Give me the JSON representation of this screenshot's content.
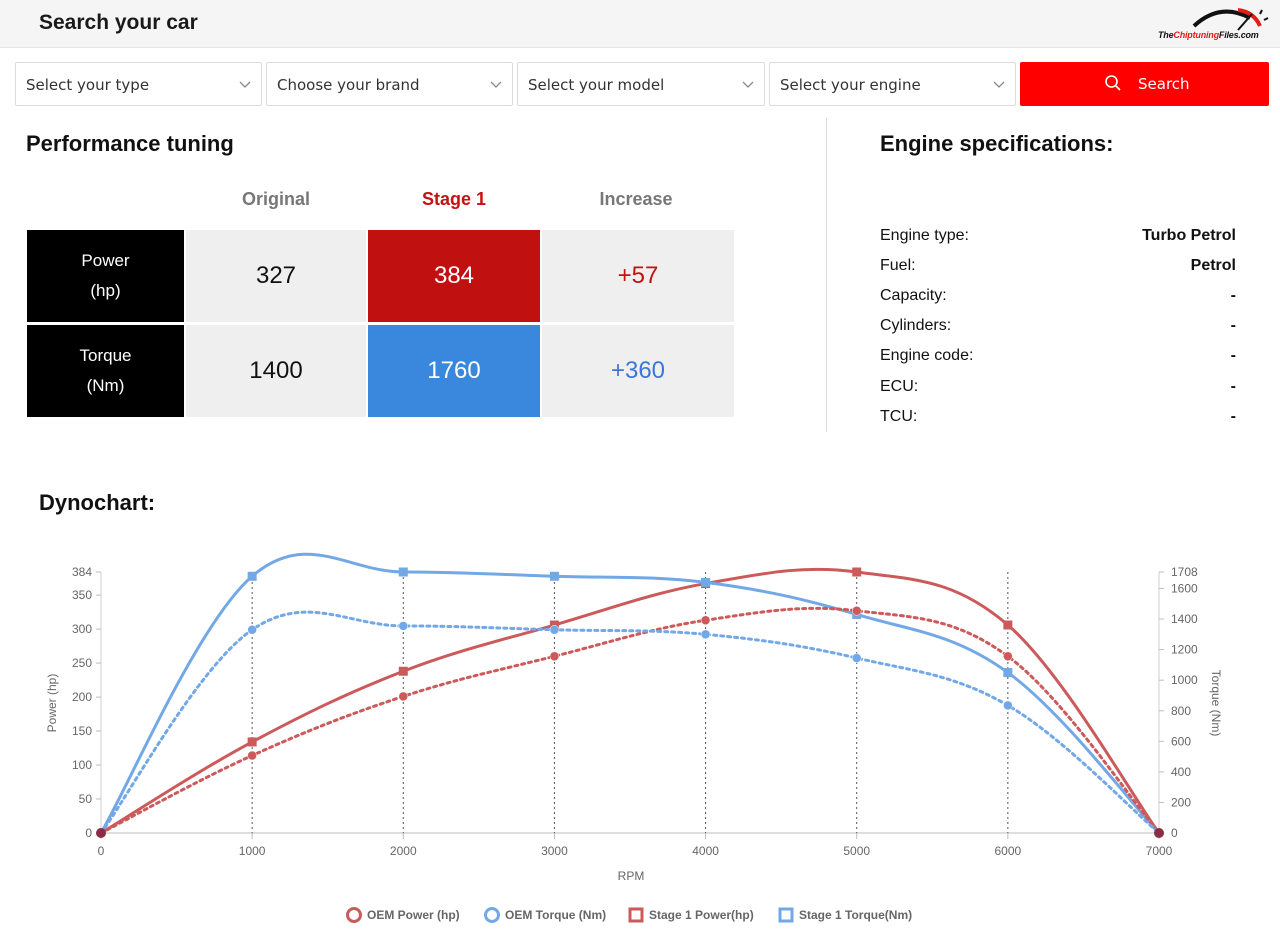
{
  "header": {
    "title": "Search your car",
    "logo_prefix": "The",
    "logo_red": "Chiptuning",
    "logo_suffix": "Files.com"
  },
  "search": {
    "type_label": "Select your type",
    "brand_label": "Choose your brand",
    "model_label": "Select your model",
    "engine_label": "Select your engine",
    "button_label": "Search"
  },
  "performance": {
    "title": "Performance tuning",
    "col_original": "Original",
    "col_stage": "Stage 1",
    "col_increase": "Increase",
    "power": {
      "label": "Power\n(hp)",
      "original": "327",
      "stage": "384",
      "increase": "+57"
    },
    "torque": {
      "label": "Torque\n(Nm)",
      "original": "1400",
      "stage": "1760",
      "increase": "+360"
    }
  },
  "specs": {
    "title": "Engine specifications:",
    "items": [
      {
        "label": "Engine type:",
        "value": "Turbo Petrol"
      },
      {
        "label": "Fuel:",
        "value": "Petrol"
      },
      {
        "label": "Capacity:",
        "value": "-"
      },
      {
        "label": "Cylinders:",
        "value": "-"
      },
      {
        "label": "Engine code:",
        "value": "-"
      },
      {
        "label": "ECU:",
        "value": "-"
      },
      {
        "label": "TCU:",
        "value": "-"
      }
    ]
  },
  "dyno": {
    "title": "Dynochart:"
  },
  "colors": {
    "power": "#cc5a5a",
    "torque": "#73a8e6",
    "stage_power_cell": "#c11010",
    "stage_torque_cell": "#3a87de",
    "search_button": "#ff0000"
  },
  "chart_data": {
    "type": "line",
    "x": [
      0,
      1000,
      2000,
      3000,
      4000,
      5000,
      6000,
      7000
    ],
    "xlabel": "RPM",
    "ylabel_left": "Power (hp)",
    "ylabel_right": "Torque (Nm)",
    "y_left_ticks": [
      0,
      50,
      100,
      150,
      200,
      250,
      300,
      350,
      384
    ],
    "y_right_ticks": [
      0,
      200,
      400,
      600,
      800,
      1000,
      1200,
      1400,
      1600,
      1708
    ],
    "y_left_range": [
      0,
      384
    ],
    "y_right_range": [
      0,
      1708
    ],
    "x_range": [
      0,
      7000
    ],
    "series": [
      {
        "name": "OEM Power (hp)",
        "axis": "left",
        "style": "dotted",
        "marker": "circle",
        "color": "#cc5a5a",
        "values": [
          0,
          114,
          201,
          260,
          313,
          327,
          260,
          0
        ]
      },
      {
        "name": "OEM Torque (Nm)",
        "axis": "right",
        "style": "dotted",
        "marker": "circle",
        "color": "#73a8e6",
        "values": [
          0,
          1330,
          1355,
          1330,
          1300,
          1145,
          835,
          0
        ]
      },
      {
        "name": "Stage 1 Power(hp)",
        "axis": "left",
        "style": "solid",
        "marker": "square",
        "color": "#cc5a5a",
        "values": [
          0,
          134,
          238,
          306,
          367,
          384,
          306,
          0
        ]
      },
      {
        "name": "Stage 1 Torque(Nm)",
        "axis": "right",
        "style": "solid",
        "marker": "square",
        "color": "#73a8e6",
        "values": [
          0,
          1680,
          1708,
          1680,
          1640,
          1430,
          1050,
          0
        ]
      }
    ],
    "grid": "vertical dotted at x ticks",
    "legend": "bottom-center"
  }
}
